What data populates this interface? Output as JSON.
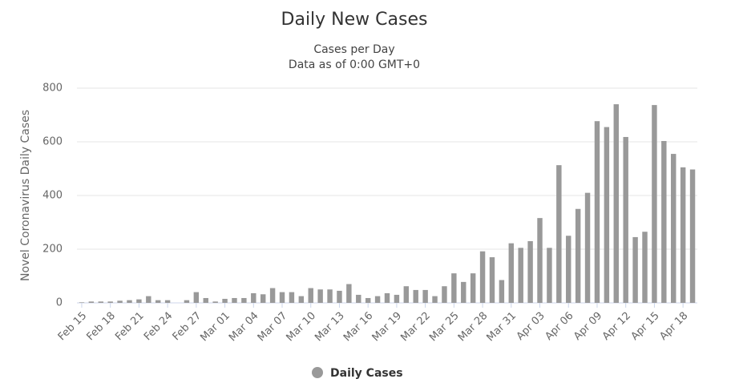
{
  "chart_data": {
    "type": "bar",
    "title": "Daily New Cases",
    "subtitle": [
      "Cases per Day",
      "Data as of 0:00 GMT+0"
    ],
    "y_axis_label": "Novel Coronavirus Daily Cases",
    "categories": [
      "Feb 15",
      null,
      null,
      "Feb 18",
      null,
      null,
      "Feb 21",
      null,
      null,
      "Feb 24",
      null,
      null,
      "Feb 27",
      null,
      null,
      "Mar 01",
      null,
      null,
      "Mar 04",
      null,
      null,
      "Mar 07",
      null,
      null,
      "Mar 10",
      null,
      null,
      "Mar 13",
      null,
      null,
      "Mar 16",
      null,
      null,
      "Mar 19",
      null,
      null,
      "Mar 22",
      null,
      null,
      "Mar 25",
      null,
      null,
      "Mar 28",
      null,
      null,
      "Mar 31",
      null,
      null,
      "Apr 03",
      null,
      null,
      "Apr 06",
      null,
      null,
      "Apr 09",
      null,
      null,
      "Apr 12",
      null,
      null,
      "Apr 15",
      null,
      null,
      "Apr 18",
      null
    ],
    "series": [
      {
        "name": "Daily Cases",
        "color": "#999999",
        "values": [
          2,
          5,
          5,
          5,
          8,
          10,
          13,
          25,
          10,
          10,
          0,
          10,
          40,
          18,
          5,
          15,
          18,
          18,
          36,
          32,
          55,
          40,
          40,
          25,
          55,
          50,
          50,
          45,
          70,
          30,
          18,
          25,
          36,
          30,
          62,
          48,
          48,
          25,
          62,
          110,
          78,
          110,
          192,
          170,
          85,
          222,
          205,
          230,
          316,
          205,
          513,
          250,
          350,
          410,
          677,
          655,
          740,
          618,
          245,
          265,
          737,
          603,
          555,
          505,
          497
        ]
      }
    ],
    "ylim": [
      0,
      800
    ],
    "yticks": [
      0,
      200,
      400,
      600,
      800
    ],
    "grid": true,
    "legend": "bottom"
  }
}
